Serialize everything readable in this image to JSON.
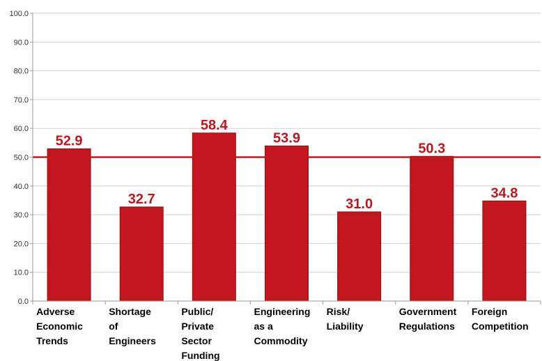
{
  "chart_data": {
    "type": "bar",
    "title": "",
    "xlabel": "",
    "ylabel": "",
    "ylim": [
      0,
      100
    ],
    "yticks": [
      "0.0",
      "10.0",
      "20.0",
      "30.0",
      "40.0",
      "50.0",
      "60.0",
      "70.0",
      "80.0",
      "90.0",
      "100.0"
    ],
    "grid": "horizontal",
    "categories": [
      [
        "Adverse",
        "Economic",
        "Trends"
      ],
      [
        "Shortage",
        "of",
        "Engineers"
      ],
      [
        "Public/",
        "Private",
        "Sector",
        "Funding"
      ],
      [
        "Engineering",
        "as a",
        "Commodity"
      ],
      [
        "Risk/",
        "Liability"
      ],
      [
        "Government",
        "Regulations"
      ],
      [
        "Foreign",
        "Competition"
      ]
    ],
    "values": [
      52.9,
      32.7,
      58.4,
      53.9,
      31.0,
      50.3,
      34.8
    ],
    "value_labels": [
      "52.9",
      "32.7",
      "58.4",
      "53.9",
      "31.0",
      "50.3",
      "34.8"
    ],
    "reference_line": 50,
    "colors": {
      "bar": "#C0181E",
      "bar_edge": "#8E1014",
      "label": "#B51A21",
      "reference_line": "#C0181E",
      "grid": "#CFCFCF",
      "axis": "#9A9A9A"
    }
  }
}
